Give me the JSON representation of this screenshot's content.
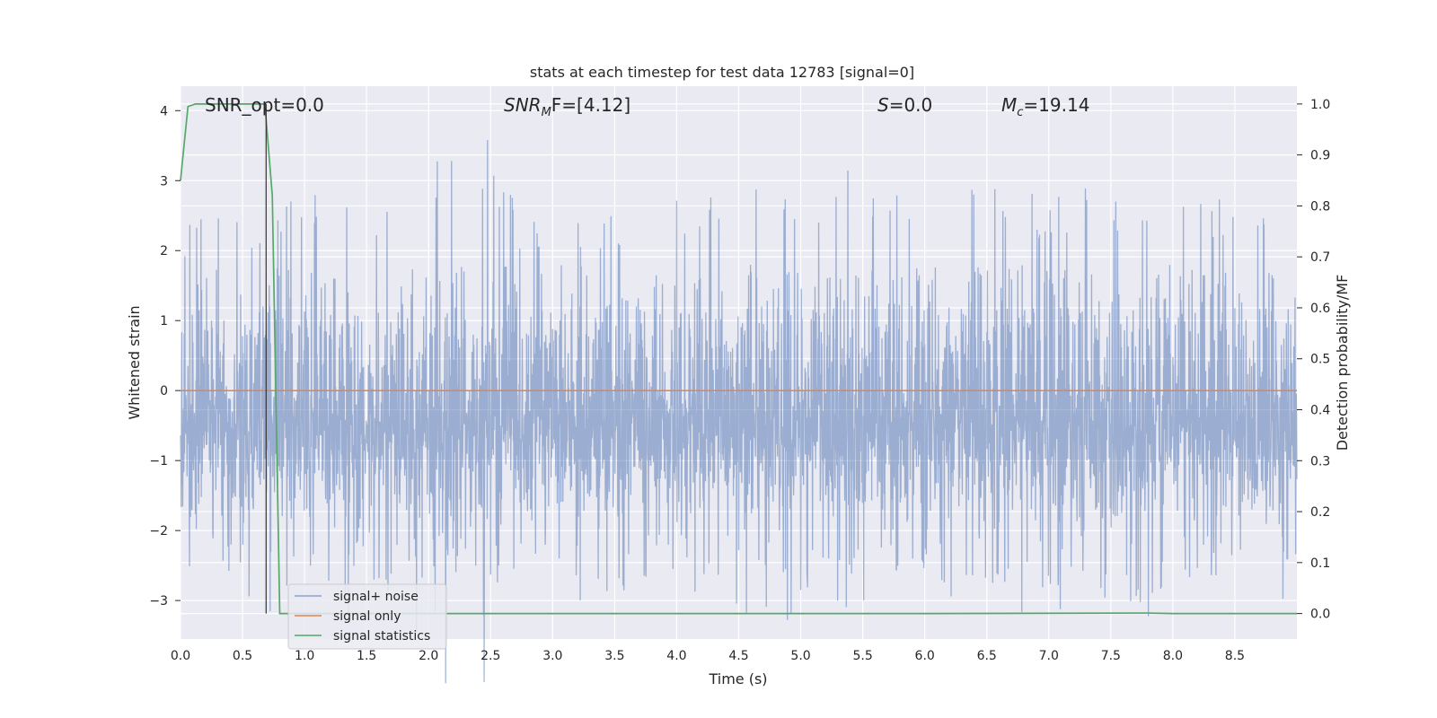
{
  "chart_data": {
    "type": "line",
    "title": "stats at each timestep for test data 12783 [signal=0]",
    "xlabel": "Time (s)",
    "ylabel": "Whitened strain",
    "y2label": "Detection probability/MF",
    "xlim": [
      0.0,
      9.0
    ],
    "ylim": [
      -3.55,
      4.35
    ],
    "y2lim": [
      -0.05,
      1.035
    ],
    "xticks": [
      0.0,
      0.5,
      1.0,
      1.5,
      2.0,
      2.5,
      3.0,
      3.5,
      4.0,
      4.5,
      5.0,
      5.5,
      6.0,
      6.5,
      7.0,
      7.5,
      8.0,
      8.5
    ],
    "yticks": [
      -3,
      -2,
      -1,
      0,
      1,
      2,
      3,
      4
    ],
    "y2ticks": [
      0.0,
      0.1,
      0.2,
      0.3,
      0.4,
      0.5,
      0.6,
      0.7,
      0.8,
      0.9,
      1.0
    ],
    "grid": true,
    "legend_position": "lower-left",
    "annotations": {
      "snr_opt": "SNR_opt=0.0",
      "snr_mf_main": "SNR",
      "snr_mf_sub": "M",
      "snr_mf_rest": "F=[4.12]",
      "s_main": "S",
      "s_rest": "=0.0",
      "mc_main": "M",
      "mc_sub": "c",
      "mc_rest": "=19.14"
    },
    "vline_x": 0.69,
    "series": [
      {
        "name": "signal+ noise",
        "color": "#4c72b0",
        "axis": "left",
        "description_envelope": [
          [
            0.0,
            2.2,
            -1.8
          ],
          [
            0.3,
            2.9,
            -2.7
          ],
          [
            0.6,
            2.2,
            -3.1
          ],
          [
            1.0,
            2.9,
            -2.9
          ],
          [
            1.5,
            2.6,
            -2.9
          ],
          [
            1.95,
            3.5,
            -2.6
          ],
          [
            2.38,
            4.0,
            -2.9
          ],
          [
            2.75,
            2.6,
            -2.7
          ],
          [
            3.15,
            2.5,
            -3.15
          ],
          [
            4.0,
            2.8,
            -2.6
          ],
          [
            5.5,
            3.2,
            -3.05
          ],
          [
            5.95,
            3.2,
            -2.6
          ],
          [
            6.6,
            2.9,
            -2.8
          ],
          [
            7.5,
            2.9,
            -3.1
          ],
          [
            8.5,
            2.9,
            -2.6
          ],
          [
            9.0,
            3.0,
            -2.4
          ]
        ]
      },
      {
        "name": "signal only",
        "color": "#dd8452",
        "axis": "left",
        "x": [
          0.0,
          9.0
        ],
        "y": [
          0.0,
          0.0
        ]
      },
      {
        "name": "signal statistics",
        "color": "#55a868",
        "axis": "right",
        "x": [
          0.0,
          0.06,
          0.12,
          0.2,
          0.3,
          0.5,
          0.68,
          0.74,
          0.8,
          0.86,
          1.0,
          2.0,
          4.0,
          6.0,
          7.8,
          8.0,
          9.0
        ],
        "y": [
          0.85,
          0.995,
          1.0,
          1.0,
          1.0,
          1.0,
          1.0,
          0.82,
          0.0,
          0.0,
          0.0,
          0.0,
          0.0,
          0.0,
          0.001,
          0.0,
          0.0
        ]
      }
    ]
  }
}
